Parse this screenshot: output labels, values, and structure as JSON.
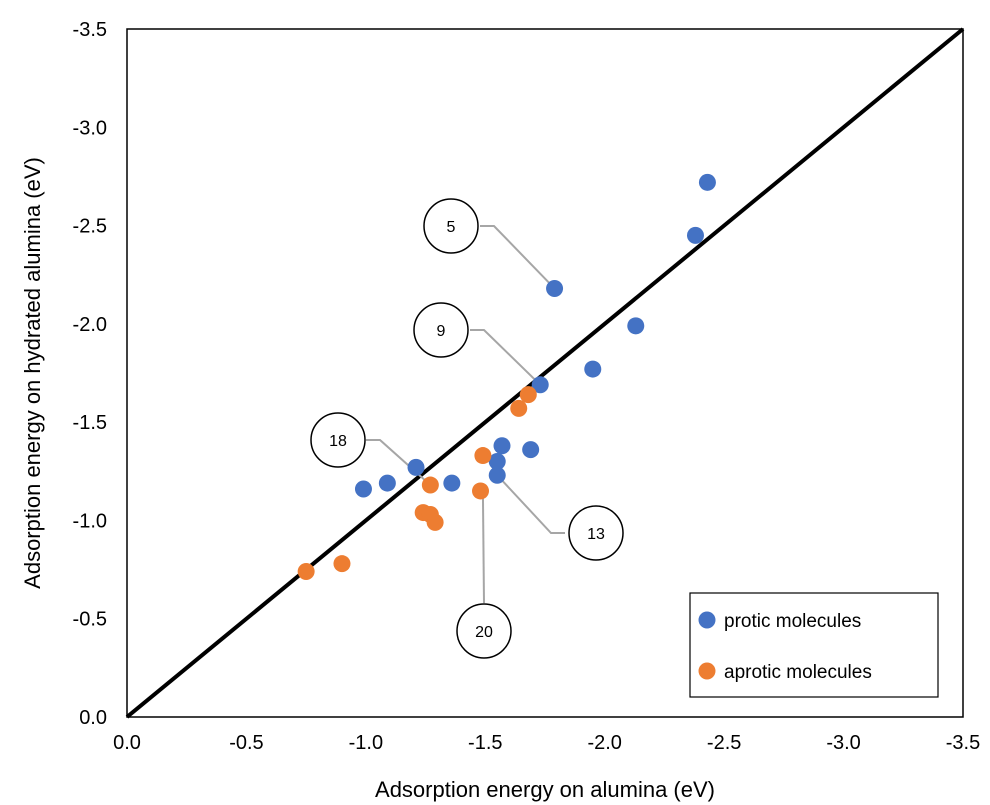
{
  "chart_data": {
    "type": "scatter",
    "title": "",
    "xlabel": "Adsorption energy on alumina (eV)",
    "ylabel": "Adsorption energy on hydrated alumina (eV)",
    "xlim": [
      0.0,
      -3.5
    ],
    "ylim": [
      0.0,
      -3.5
    ],
    "xticks": [
      "0.0",
      "-0.5",
      "-1.0",
      "-1.5",
      "-2.0",
      "-2.5",
      "-3.0",
      "-3.5"
    ],
    "yticks": [
      "0.0",
      "-0.5",
      "-1.0",
      "-1.5",
      "-2.0",
      "-2.5",
      "-3.0",
      "-3.5"
    ],
    "grid": false,
    "legend_position": "bottom-right",
    "reference_line": {
      "label": "y = x",
      "from": [
        0,
        0
      ],
      "to": [
        -3.5,
        -3.5
      ],
      "color": "#000000"
    },
    "series": [
      {
        "name": "protic molecules",
        "color": "#4472C4",
        "x": [
          -0.99,
          -1.09,
          -1.21,
          -1.36,
          -1.55,
          -1.55,
          -1.57,
          -1.69,
          -1.73,
          -1.79,
          -1.95,
          -2.13,
          -2.38,
          -2.43
        ],
        "y": [
          -1.16,
          -1.19,
          -1.27,
          -1.19,
          -1.3,
          -1.23,
          -1.38,
          -1.36,
          -1.69,
          -2.18,
          -1.77,
          -1.99,
          -2.45,
          -2.72
        ]
      },
      {
        "name": "aprotic molecules",
        "color": "#ED7D31",
        "x": [
          -0.75,
          -0.9,
          -1.24,
          -1.27,
          -1.29,
          -1.27,
          -1.48,
          -1.49,
          -1.64,
          -1.68
        ],
        "y": [
          -0.74,
          -0.78,
          -1.04,
          -1.03,
          -0.99,
          -1.18,
          -1.15,
          -1.33,
          -1.57,
          -1.64
        ]
      }
    ],
    "annotations": [
      {
        "label": "5",
        "target": [
          -1.79,
          -2.18
        ]
      },
      {
        "label": "9",
        "target": [
          -1.73,
          -1.69
        ]
      },
      {
        "label": "18",
        "target": [
          -1.27,
          -1.18
        ]
      },
      {
        "label": "13",
        "target": [
          -1.55,
          -1.23
        ]
      },
      {
        "label": "20",
        "target": [
          -1.49,
          -1.15
        ]
      }
    ]
  }
}
